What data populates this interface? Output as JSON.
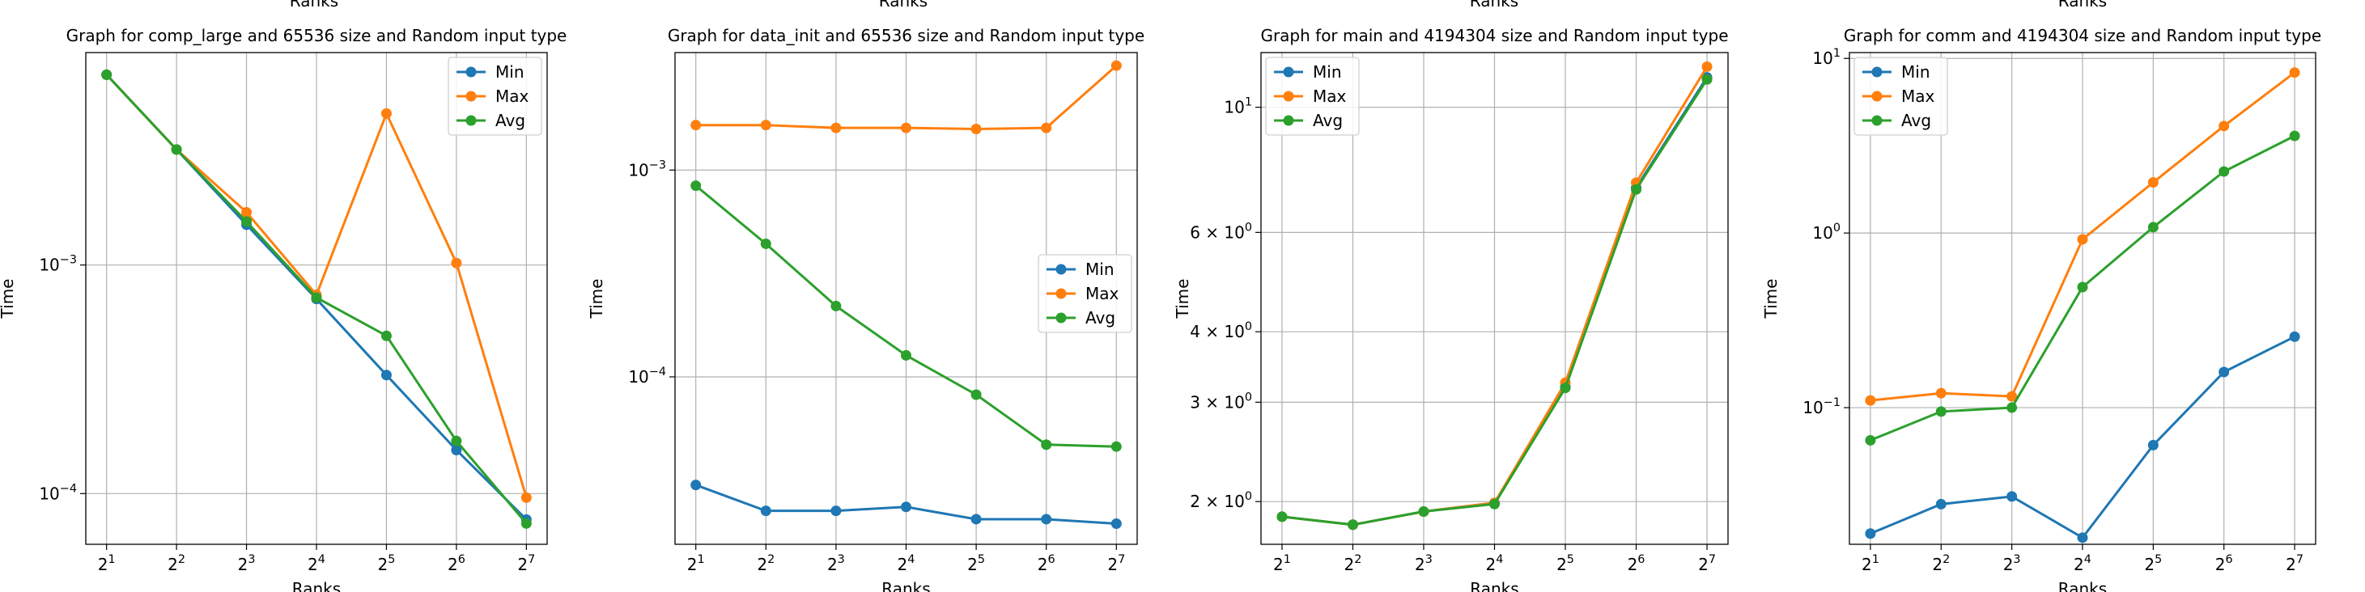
{
  "figure": {
    "top_cut_label": "Ranks"
  },
  "chart_data": [
    {
      "type": "line",
      "title": "Graph for comp_large and 65536 size and Random input type",
      "xlabel": "Ranks",
      "ylabel": "Time",
      "y_scale": "log",
      "grid": true,
      "legend_position": "upper right",
      "x": [
        "2^1",
        "2^2",
        "2^3",
        "2^4",
        "2^5",
        "2^6",
        "2^7"
      ],
      "x_ticks": [
        {
          "base": "2",
          "exp": "1"
        },
        {
          "base": "2",
          "exp": "2"
        },
        {
          "base": "2",
          "exp": "3"
        },
        {
          "base": "2",
          "exp": "4"
        },
        {
          "base": "2",
          "exp": "5"
        },
        {
          "base": "2",
          "exp": "6"
        },
        {
          "base": "2",
          "exp": "7"
        }
      ],
      "y_ticks": [
        {
          "value": 0.001,
          "base": "10",
          "exp": "−3"
        },
        {
          "value": 0.0001,
          "base": "10",
          "exp": "−4"
        }
      ],
      "ylim": [
        6e-05,
        0.0085
      ],
      "series": [
        {
          "name": "Min",
          "color": "#1f77b4",
          "values": [
            0.0068,
            0.0032,
            0.0015,
            0.00071,
            0.00033,
            0.000155,
            7.7e-05
          ]
        },
        {
          "name": "Max",
          "color": "#ff7f0e",
          "values": [
            0.0068,
            0.0032,
            0.0017,
            0.00074,
            0.0046,
            0.00102,
            9.6e-05
          ]
        },
        {
          "name": "Avg",
          "color": "#2ca02c",
          "values": [
            0.0068,
            0.0032,
            0.00155,
            0.00072,
            0.00049,
            0.00017,
            7.4e-05
          ]
        }
      ]
    },
    {
      "type": "line",
      "title": "Graph for data_init and 65536 size and Random input type",
      "xlabel": "Ranks",
      "ylabel": "Time",
      "y_scale": "log",
      "grid": true,
      "legend_position": "center right",
      "x": [
        "2^1",
        "2^2",
        "2^3",
        "2^4",
        "2^5",
        "2^6",
        "2^7"
      ],
      "x_ticks": [
        {
          "base": "2",
          "exp": "1"
        },
        {
          "base": "2",
          "exp": "2"
        },
        {
          "base": "2",
          "exp": "3"
        },
        {
          "base": "2",
          "exp": "4"
        },
        {
          "base": "2",
          "exp": "5"
        },
        {
          "base": "2",
          "exp": "6"
        },
        {
          "base": "2",
          "exp": "7"
        }
      ],
      "y_ticks": [
        {
          "value": 0.001,
          "base": "10",
          "exp": "−3"
        },
        {
          "value": 0.0001,
          "base": "10",
          "exp": "−4"
        }
      ],
      "ylim": [
        1.55e-05,
        0.0037
      ],
      "series": [
        {
          "name": "Min",
          "color": "#1f77b4",
          "values": [
            3e-05,
            2.25e-05,
            2.25e-05,
            2.35e-05,
            2.05e-05,
            2.05e-05,
            1.95e-05
          ]
        },
        {
          "name": "Max",
          "color": "#ff7f0e",
          "values": [
            0.00165,
            0.00165,
            0.0016,
            0.0016,
            0.00158,
            0.0016,
            0.0032
          ]
        },
        {
          "name": "Avg",
          "color": "#2ca02c",
          "values": [
            0.00084,
            0.00044,
            0.00022,
            0.000127,
            8.2e-05,
            4.7e-05,
            4.6e-05
          ]
        }
      ]
    },
    {
      "type": "line",
      "title": "Graph for main and 4194304 size and Random input type",
      "xlabel": "Ranks",
      "ylabel": "Time",
      "y_scale": "log",
      "grid": true,
      "legend_position": "upper left",
      "x": [
        "2^1",
        "2^2",
        "2^3",
        "2^4",
        "2^5",
        "2^6",
        "2^7"
      ],
      "x_ticks": [
        {
          "base": "2",
          "exp": "1"
        },
        {
          "base": "2",
          "exp": "2"
        },
        {
          "base": "2",
          "exp": "3"
        },
        {
          "base": "2",
          "exp": "4"
        },
        {
          "base": "2",
          "exp": "5"
        },
        {
          "base": "2",
          "exp": "6"
        },
        {
          "base": "2",
          "exp": "7"
        }
      ],
      "y_ticks": [
        {
          "value": 10,
          "base": "10",
          "exp": "1"
        },
        {
          "value": 6,
          "base": "6 × 10",
          "exp": "0"
        },
        {
          "value": 4,
          "base": "4 × 10",
          "exp": "0"
        },
        {
          "value": 3,
          "base": "3 × 10",
          "exp": "0"
        },
        {
          "value": 2,
          "base": "2 × 10",
          "exp": "0"
        }
      ],
      "ylim": [
        1.68,
        12.5
      ],
      "series": [
        {
          "name": "Min",
          "color": "#1f77b4",
          "values": [
            1.88,
            1.82,
            1.92,
            1.99,
            3.2,
            7.2,
            11.3
          ]
        },
        {
          "name": "Max",
          "color": "#ff7f0e",
          "values": [
            1.88,
            1.82,
            1.92,
            1.99,
            3.25,
            7.35,
            11.8
          ]
        },
        {
          "name": "Avg",
          "color": "#2ca02c",
          "values": [
            1.88,
            1.82,
            1.92,
            1.98,
            3.18,
            7.15,
            11.2
          ]
        }
      ]
    },
    {
      "type": "line",
      "title": "Graph for comm and 4194304 size and Random input type",
      "xlabel": "Ranks",
      "ylabel": "Time",
      "y_scale": "log",
      "grid": true,
      "legend_position": "upper left",
      "x": [
        "2^1",
        "2^2",
        "2^3",
        "2^4",
        "2^5",
        "2^6",
        "2^7"
      ],
      "x_ticks": [
        {
          "base": "2",
          "exp": "1"
        },
        {
          "base": "2",
          "exp": "2"
        },
        {
          "base": "2",
          "exp": "3"
        },
        {
          "base": "2",
          "exp": "4"
        },
        {
          "base": "2",
          "exp": "5"
        },
        {
          "base": "2",
          "exp": "6"
        },
        {
          "base": "2",
          "exp": "7"
        }
      ],
      "y_ticks": [
        {
          "value": 10,
          "base": "10",
          "exp": "1"
        },
        {
          "value": 1,
          "base": "10",
          "exp": "0"
        },
        {
          "value": 0.1,
          "base": "10",
          "exp": "−1"
        }
      ],
      "ylim": [
        0.0165,
        10.8
      ],
      "series": [
        {
          "name": "Min",
          "color": "#1f77b4",
          "values": [
            0.019,
            0.028,
            0.031,
            0.018,
            0.061,
            0.16,
            0.255
          ]
        },
        {
          "name": "Max",
          "color": "#ff7f0e",
          "values": [
            0.11,
            0.121,
            0.116,
            0.92,
            1.95,
            4.1,
            8.3
          ]
        },
        {
          "name": "Avg",
          "color": "#2ca02c",
          "values": [
            0.065,
            0.095,
            0.1,
            0.49,
            1.08,
            2.25,
            3.6
          ]
        }
      ]
    }
  ]
}
